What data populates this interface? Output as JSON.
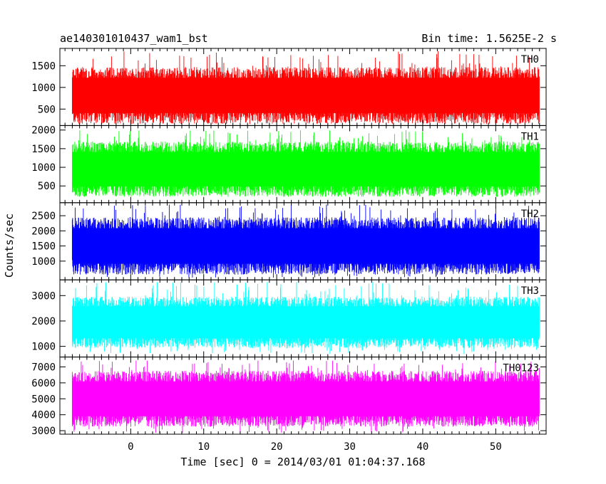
{
  "header": {
    "left": "ae140301010437_wam1_bst",
    "right": "Bin time: 1.5625E-2 s"
  },
  "chart_data": {
    "type": "line",
    "ylabel": "Counts/sec",
    "xlabel": "Time [sec] 0 = 2014/03/01 01:04:37.168",
    "xlim": [
      -9.7,
      56.9
    ],
    "x_ticks": [
      0,
      10,
      20,
      30,
      40,
      50
    ],
    "data_x_range": [
      -8,
      56
    ],
    "panels": [
      {
        "name": "TH0",
        "color": "#ff0000",
        "ylim": [
          120,
          1900
        ],
        "yticks": [
          500,
          1000,
          1500
        ],
        "band": [
          330,
          1300
        ],
        "spike_min": 150,
        "spike_max": 1850
      },
      {
        "name": "TH1",
        "color": "#00ff00",
        "ylim": [
          50,
          2120
        ],
        "yticks": [
          500,
          1000,
          1500,
          2000
        ],
        "band": [
          400,
          1500
        ],
        "spike_min": 210,
        "spike_max": 2000
      },
      {
        "name": "TH2",
        "color": "#0000ff",
        "ylim": [
          380,
          2930
        ],
        "yticks": [
          1000,
          1500,
          2000,
          2500
        ],
        "band": [
          800,
          2200
        ],
        "spike_min": 450,
        "spike_max": 2870
      },
      {
        "name": "TH3",
        "color": "#00ffff",
        "ylim": [
          580,
          3620
        ],
        "yticks": [
          1000,
          2000,
          3000
        ],
        "band": [
          1200,
          2700
        ],
        "spike_min": 700,
        "spike_max": 3550
      },
      {
        "name": "TH0123",
        "color": "#ff00ff",
        "ylim": [
          2780,
          7620
        ],
        "yticks": [
          3000,
          4000,
          5000,
          6000,
          7000
        ],
        "band": [
          3700,
          6300
        ],
        "spike_min": 2850,
        "spike_max": 7400
      }
    ]
  }
}
